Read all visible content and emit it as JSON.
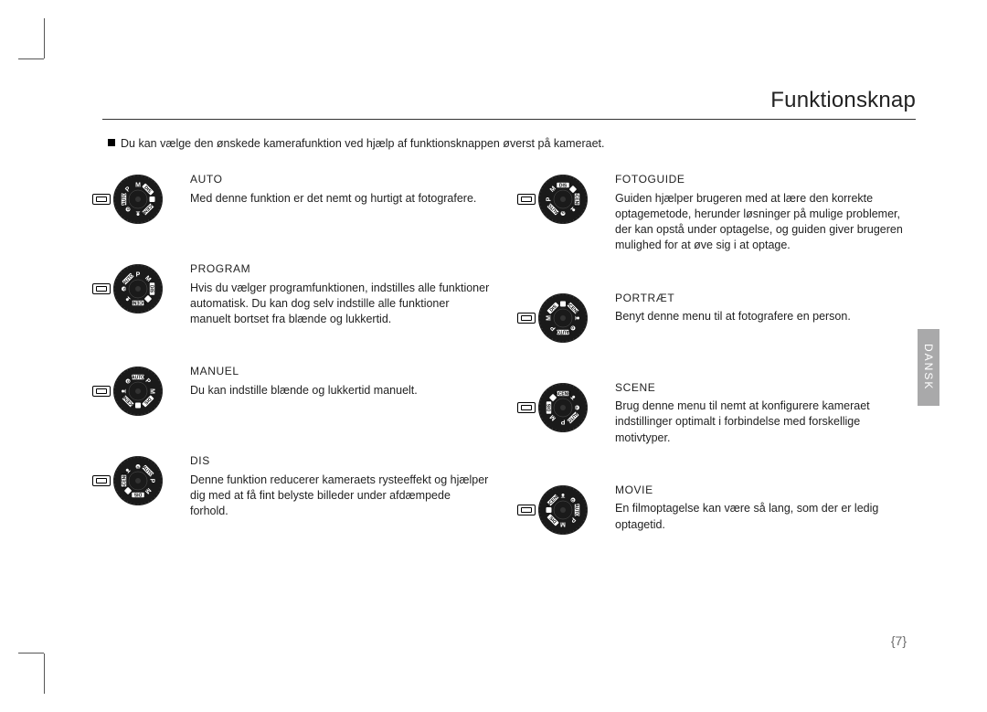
{
  "page": {
    "title": "Funktionsknap",
    "intro": "Du kan vælge den ønskede kamerafunktion ved hjælp af funktionsknappen øverst på kameraet.",
    "side_tab": "DANSK",
    "page_number": "{7}"
  },
  "dial": {
    "ring_outer_color": "#1a1a1a",
    "ring_inner_color": "#ffffff",
    "center_color": "#1a1a1a",
    "positions": [
      "AUTO",
      "P",
      "M",
      "DIS",
      "MOVIE",
      "SCENE",
      "PORTRAIT",
      "GUIDE"
    ]
  },
  "modes_left": [
    {
      "key": "auto",
      "heading": "AUTO",
      "body": "Med denne funktion er det nemt og hurtigt at fotografere.",
      "selected": "AUTO",
      "rotation": 0
    },
    {
      "key": "program",
      "heading": "PROGRAM",
      "body": "Hvis du vælger programfunktionen, indstilles alle funktioner automatisk. Du kan dog selv indstille alle funktioner manuelt bortset fra blænde og lukkertid.",
      "selected": "P",
      "rotation": 45
    },
    {
      "key": "manuel",
      "heading": "MANUEL",
      "body": "Du kan indstille blænde og lukkertid manuelt.",
      "selected": "M",
      "rotation": 90
    },
    {
      "key": "dis",
      "heading": "DIS",
      "body": "Denne funktion reducerer kameraets rysteeffekt og hjælper dig med at få fint belyste billeder under afdæmpede forhold.",
      "selected": "DIS",
      "rotation": 135
    }
  ],
  "modes_right": [
    {
      "key": "fotoguide",
      "heading": "FOTOGUIDE",
      "body": "Guiden hjælper brugeren med at lære den korrekte optagemetode, herunder løsninger på mulige problemer, der kan opstå under optagelse, og guiden giver brugeren mulighed for at øve sig i at optage.",
      "selected": "G",
      "rotation": -45
    },
    {
      "key": "portraet",
      "heading": "PORTRÆT",
      "body": "Benyt denne menu til at fotografere en person.",
      "selected": "●",
      "rotation": -90
    },
    {
      "key": "scene",
      "heading": "SCENE",
      "body": "Brug denne menu til nemt at konfigurere kameraet indstillinger optimalt i forbindelse med forskellige motivtyper.",
      "selected": "SCENE",
      "rotation": -135
    },
    {
      "key": "movie",
      "heading": "MOVIE",
      "body": "En filmoptagelse kan være så lang, som der er ledig optagetid.",
      "selected": "▣",
      "rotation": 180
    }
  ]
}
